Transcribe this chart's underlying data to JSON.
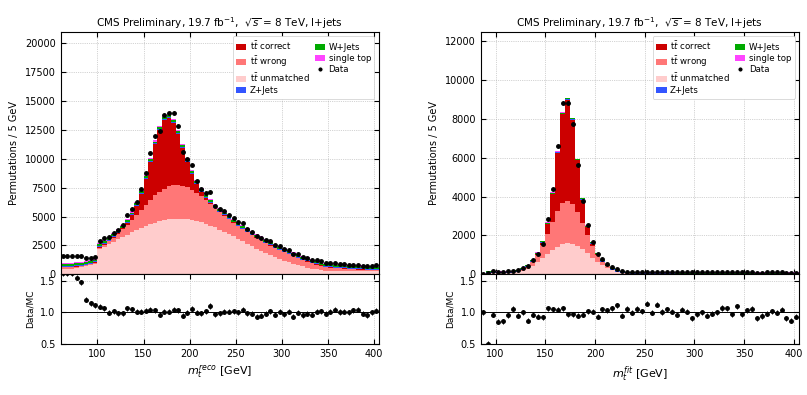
{
  "title": "CMS Preliminary, 19.7 fb$^{-1}$,  $\\sqrt{s}$ = 8 TeV, l+jets",
  "left_xlabel": "$m_t^{reco}$ [GeV]",
  "right_xlabel": "$m_t^{fit}$ [GeV]",
  "ylabel": "Permutations / 5 GeV",
  "ratio_ylabel": "Data/MC",
  "xlim_left": [
    60,
    405
  ],
  "xlim_right": [
    85,
    405
  ],
  "ylim_left": [
    0,
    21000
  ],
  "ylim_right": [
    0,
    12500
  ],
  "ratio_ylim": [
    0.5,
    1.6
  ],
  "bin_width": 5,
  "colors": {
    "tt_correct": "#cc0000",
    "tt_wrong": "#ff7777",
    "tt_unmatched": "#ffcccc",
    "zjets": "#3355ff",
    "wjets": "#00aa00",
    "single_top": "#ff44ff",
    "data": "#000000"
  },
  "legend_labels": {
    "tt_correct": "t$\\bar{t}$ correct",
    "tt_wrong": "t$\\bar{t}$ wrong",
    "tt_unmatched": "t$\\bar{t}$ unmatched",
    "zjets": "Z+Jets",
    "wjets": "W+Jets",
    "single_top": "single top",
    "data": "Data"
  }
}
